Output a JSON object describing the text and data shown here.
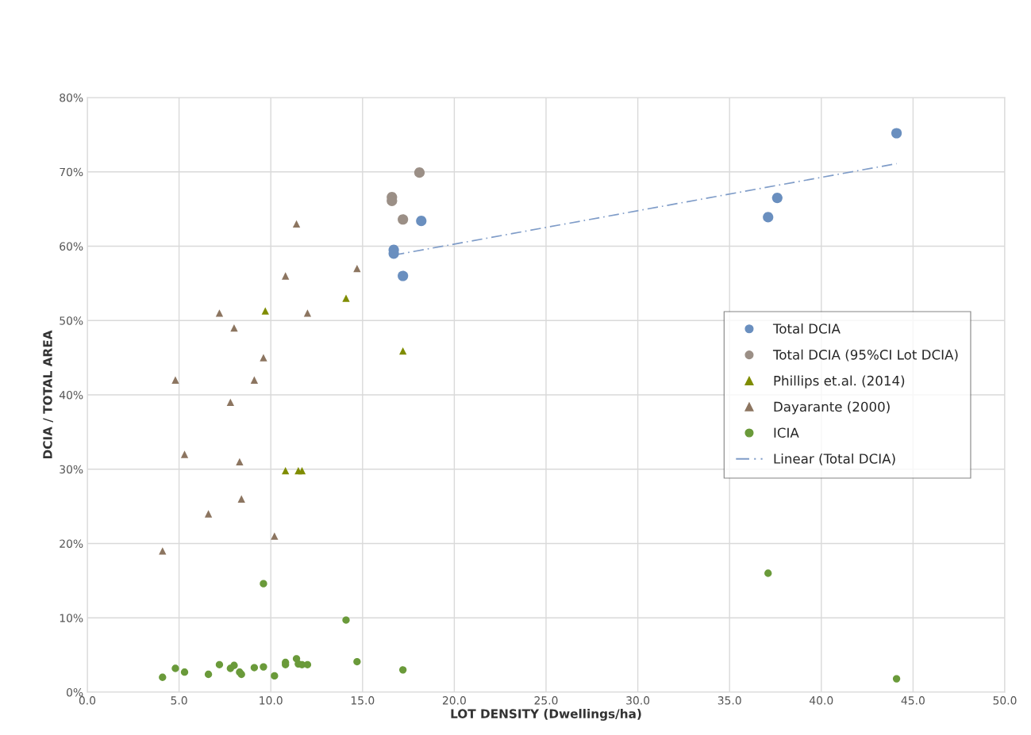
{
  "chart_data": {
    "type": "scatter",
    "xlabel": "LOT DENSITY (Dwellings/ha)",
    "ylabel": "DCIA / TOTAL AREA",
    "xlim": [
      0,
      50
    ],
    "ylim": [
      0,
      80
    ],
    "xticks": [
      {
        "value": 0,
        "label": "0.0"
      },
      {
        "value": 5,
        "label": "5.0"
      },
      {
        "value": 10,
        "label": "10.0"
      },
      {
        "value": 15,
        "label": "15.0"
      },
      {
        "value": 20,
        "label": "20.0"
      },
      {
        "value": 25,
        "label": "25.0"
      },
      {
        "value": 30,
        "label": "30.0"
      },
      {
        "value": 35,
        "label": "35.0"
      },
      {
        "value": 40,
        "label": "40.0"
      },
      {
        "value": 45,
        "label": "45.0"
      },
      {
        "value": 50,
        "label": "50.0"
      }
    ],
    "yticks": [
      {
        "value": 0,
        "label": "0%"
      },
      {
        "value": 10,
        "label": "10%"
      },
      {
        "value": 20,
        "label": "20%"
      },
      {
        "value": 30,
        "label": "30%"
      },
      {
        "value": 40,
        "label": "40%"
      },
      {
        "value": 50,
        "label": "50%"
      },
      {
        "value": 60,
        "label": "60%"
      },
      {
        "value": 70,
        "label": "70%"
      },
      {
        "value": 80,
        "label": "80%"
      }
    ],
    "grid": true,
    "legend": "right",
    "series": [
      {
        "name": "Total DCIA",
        "color": "#6a8fbf",
        "marker": "circle",
        "x": [
          16.7,
          16.7,
          17.2,
          18.2,
          37.1,
          37.6,
          44.1
        ],
        "values": [
          59.5,
          59.0,
          56.0,
          63.4,
          63.9,
          66.5,
          75.2
        ]
      },
      {
        "name": "Total DCIA (95%CI Lot DCIA)",
        "color": "#9b8f86",
        "marker": "circle",
        "x": [
          16.6,
          16.6,
          17.2,
          18.1
        ],
        "values": [
          66.6,
          66.1,
          63.6,
          69.9
        ]
      },
      {
        "name": "Phillips et.al. (2014)",
        "color": "#7f8c00",
        "marker": "triangle",
        "x": [
          9.7,
          14.1,
          17.2,
          10.8,
          11.5,
          11.7
        ],
        "values": [
          51.3,
          53.0,
          45.9,
          29.8,
          29.8,
          29.8
        ]
      },
      {
        "name": "Dayarante (2000)",
        "color": "#8c7560",
        "marker": "triangle",
        "x": [
          4.1,
          4.8,
          5.3,
          6.6,
          7.2,
          7.8,
          8.0,
          8.3,
          8.4,
          9.1,
          9.6,
          10.2,
          10.8,
          11.4,
          12.0,
          14.7
        ],
        "values": [
          19,
          42,
          32,
          24,
          51,
          39,
          49,
          31,
          26,
          42,
          45,
          21,
          56,
          63,
          51,
          57
        ]
      },
      {
        "name": "ICIA",
        "color": "#6a9a3a",
        "marker": "circle",
        "x": [
          4.1,
          4.8,
          5.3,
          6.6,
          7.2,
          7.8,
          8.0,
          8.3,
          8.4,
          9.1,
          9.6,
          9.6,
          10.2,
          10.8,
          10.8,
          11.4,
          11.5,
          11.7,
          12.0,
          14.1,
          14.7,
          17.2,
          37.1,
          44.1
        ],
        "values": [
          2.0,
          3.2,
          2.7,
          2.4,
          3.7,
          3.2,
          3.6,
          2.7,
          2.4,
          3.3,
          3.4,
          14.6,
          2.2,
          4.0,
          3.7,
          4.5,
          3.8,
          3.7,
          3.7,
          9.7,
          4.1,
          3.0,
          16.0,
          1.8
        ]
      },
      {
        "name": "Linear (Total DCIA)",
        "type": "line",
        "color": "#7f9cc8",
        "line_style": "dashed",
        "marker": "none",
        "x": [
          16.7,
          44.1
        ],
        "values": [
          58.8,
          71.1
        ]
      }
    ]
  }
}
